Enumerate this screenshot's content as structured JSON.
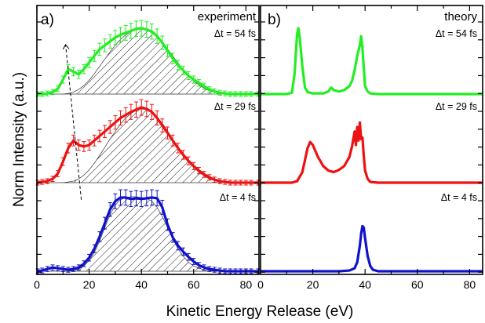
{
  "chart_data": {
    "type": "line",
    "xlabel": "Kinetic Energy Release (eV)",
    "ylabel": "Norm Intensity (a.u.)",
    "xlim": [
      0,
      85
    ],
    "xticks": [
      "0",
      "20",
      "40",
      "60",
      "80"
    ],
    "colors": {
      "green": "#22ee22",
      "red": "#ee1111",
      "blue": "#1111cc",
      "hatch": "#000000"
    },
    "panels": [
      {
        "letter": "a)",
        "title": "experiment",
        "traces": [
          {
            "label": "Δt = 54 fs",
            "color": "#22ee22",
            "error_bars": true,
            "x": [
              0,
              2,
              4,
              6,
              8,
              10,
              12,
              14,
              16,
              18,
              20,
              22,
              24,
              26,
              28,
              30,
              32,
              34,
              36,
              38,
              40,
              42,
              44,
              46,
              48,
              50,
              52,
              54,
              56,
              58,
              60,
              62,
              64,
              66,
              68,
              70,
              72,
              74,
              76,
              78,
              80,
              82,
              85
            ],
            "y": [
              0,
              0,
              0.01,
              0.03,
              0.08,
              0.22,
              0.38,
              0.34,
              0.3,
              0.38,
              0.48,
              0.58,
              0.68,
              0.74,
              0.8,
              0.86,
              0.9,
              0.93,
              0.96,
              0.99,
              1.0,
              0.98,
              0.95,
              0.88,
              0.78,
              0.66,
              0.54,
              0.44,
              0.36,
              0.28,
              0.22,
              0.17,
              0.12,
              0.07,
              0.04,
              0.02,
              0.01,
              0,
              0,
              0,
              0,
              0,
              0
            ],
            "fit": [
              0,
              0,
              0,
              0,
              0,
              0,
              0.01,
              0.03,
              0.07,
              0.13,
              0.21,
              0.31,
              0.42,
              0.53,
              0.64,
              0.74,
              0.83,
              0.9,
              0.95,
              0.98,
              0.99,
              0.97,
              0.93,
              0.87,
              0.79,
              0.69,
              0.58,
              0.47,
              0.37,
              0.28,
              0.2,
              0.14,
              0.09,
              0.05,
              0.03,
              0.01,
              0,
              0,
              0,
              0,
              0,
              0,
              0
            ]
          },
          {
            "label": "Δt = 29 fs",
            "color": "#ee1111",
            "error_bars": true,
            "x": [
              0,
              2,
              4,
              6,
              8,
              10,
              12,
              14,
              16,
              18,
              20,
              22,
              24,
              26,
              28,
              30,
              32,
              34,
              36,
              38,
              40,
              42,
              44,
              46,
              48,
              50,
              52,
              54,
              56,
              58,
              60,
              62,
              64,
              66,
              68,
              70,
              72,
              74,
              76,
              78,
              80,
              82,
              85
            ],
            "y": [
              0,
              0.01,
              0.02,
              0.05,
              0.12,
              0.28,
              0.46,
              0.56,
              0.5,
              0.48,
              0.5,
              0.56,
              0.62,
              0.68,
              0.74,
              0.8,
              0.86,
              0.9,
              0.94,
              0.97,
              1.0,
              0.98,
              0.94,
              0.86,
              0.76,
              0.66,
              0.56,
              0.46,
              0.37,
              0.29,
              0.22,
              0.16,
              0.11,
              0.07,
              0.04,
              0.02,
              0.01,
              0,
              0,
              0,
              0,
              0,
              0
            ],
            "fit": [
              0,
              0,
              0,
              0,
              0,
              0,
              0.01,
              0.02,
              0.05,
              0.1,
              0.17,
              0.26,
              0.36,
              0.47,
              0.58,
              0.68,
              0.78,
              0.86,
              0.92,
              0.96,
              0.98,
              0.97,
              0.93,
              0.87,
              0.79,
              0.69,
              0.58,
              0.47,
              0.37,
              0.28,
              0.2,
              0.14,
              0.09,
              0.05,
              0.03,
              0.01,
              0,
              0,
              0,
              0,
              0,
              0,
              0
            ]
          },
          {
            "label": "Δt = 4 fs",
            "color": "#1111cc",
            "error_bars": true,
            "x": [
              0,
              2,
              4,
              6,
              8,
              10,
              12,
              14,
              16,
              18,
              20,
              22,
              24,
              26,
              28,
              30,
              32,
              34,
              36,
              38,
              40,
              42,
              44,
              46,
              48,
              50,
              52,
              54,
              56,
              58,
              60,
              62,
              64,
              66,
              68,
              70,
              72,
              74,
              76,
              78,
              80,
              82,
              85
            ],
            "y": [
              0,
              0.01,
              0.03,
              0.05,
              0.04,
              0.03,
              0.02,
              0.03,
              0.05,
              0.1,
              0.18,
              0.3,
              0.46,
              0.64,
              0.82,
              0.93,
              0.98,
              0.98,
              0.96,
              0.97,
              0.96,
              0.97,
              0.98,
              0.97,
              0.85,
              0.62,
              0.45,
              0.34,
              0.26,
              0.19,
              0.13,
              0.08,
              0.05,
              0.03,
              0.02,
              0.01,
              0,
              0,
              0,
              0,
              0,
              0,
              0
            ],
            "fit": [
              0,
              0,
              0,
              0,
              0,
              0,
              0,
              0.01,
              0.03,
              0.07,
              0.14,
              0.25,
              0.4,
              0.58,
              0.75,
              0.88,
              0.95,
              0.98,
              0.99,
              0.99,
              0.98,
              0.97,
              0.93,
              0.85,
              0.73,
              0.58,
              0.43,
              0.3,
              0.2,
              0.12,
              0.07,
              0.04,
              0.02,
              0.01,
              0,
              0,
              0,
              0,
              0,
              0,
              0,
              0,
              0
            ]
          }
        ],
        "arrow": {
          "x": [
            11,
            17
          ],
          "from_trace": 2,
          "to_trace": 0
        }
      },
      {
        "letter": "b)",
        "title": "theory",
        "traces": [
          {
            "label": "Δt = 54 fs",
            "color": "#22ee22",
            "x": [
              0,
              10,
              12,
              13,
              14,
              14.5,
              15,
              16,
              17,
              18,
              20,
              24,
              26,
              27,
              28,
              30,
              32,
              34,
              35,
              36,
              37,
              38,
              38.5,
              39,
              39.5,
              40,
              41,
              42,
              45,
              50,
              60,
              70,
              85
            ],
            "y": [
              0,
              0,
              0.02,
              0.3,
              0.92,
              1.0,
              0.85,
              0.42,
              0.1,
              0.03,
              0.01,
              0.01,
              0.04,
              0.1,
              0.06,
              0.04,
              0.06,
              0.12,
              0.2,
              0.36,
              0.58,
              0.74,
              0.88,
              0.7,
              0.4,
              0.12,
              0.04,
              0.01,
              0,
              0,
              0,
              0,
              0
            ]
          },
          {
            "label": "Δt = 29 fs",
            "color": "#ee1111",
            "x": [
              0,
              12,
              14,
              16,
              18,
              19,
              20,
              22,
              24,
              26,
              28,
              30,
              32,
              34,
              35,
              36,
              36.5,
              37,
              37.5,
              38,
              38.5,
              39,
              39.5,
              40,
              41,
              42,
              45,
              50,
              60,
              70,
              85
            ],
            "y": [
              0,
              0,
              0.02,
              0.14,
              0.46,
              0.54,
              0.5,
              0.34,
              0.22,
              0.16,
              0.14,
              0.17,
              0.22,
              0.34,
              0.48,
              0.68,
              0.5,
              0.74,
              0.56,
              0.8,
              0.58,
              0.6,
              0.36,
              0.16,
              0.05,
              0.01,
              0,
              0,
              0,
              0,
              0
            ]
          },
          {
            "label": "Δt = 4 fs",
            "color": "#1111cc",
            "x": [
              0,
              30,
              34,
              36,
              37,
              38,
              38.5,
              39,
              39.5,
              40,
              41,
              42,
              43,
              45,
              50,
              60,
              70,
              85
            ],
            "y": [
              0,
              0,
              0.01,
              0.04,
              0.12,
              0.34,
              0.5,
              0.6,
              0.58,
              0.44,
              0.2,
              0.07,
              0.02,
              0,
              0,
              0,
              0,
              0
            ]
          }
        ]
      }
    ]
  }
}
